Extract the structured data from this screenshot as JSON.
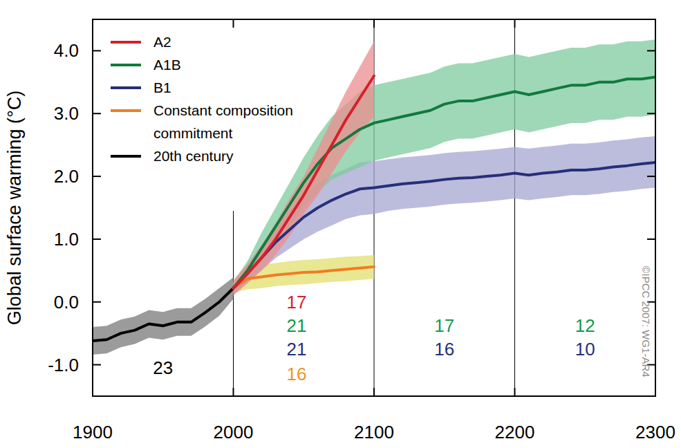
{
  "chart_data": {
    "type": "line",
    "y_label": "Global surface warming (°C)",
    "xlim": [
      1900,
      2300
    ],
    "ylim": [
      -1.5,
      4.5
    ],
    "xticks": [
      1900,
      2000,
      2100,
      2200,
      2300
    ],
    "yticks": [
      {
        "value": -1,
        "label": "-1.0"
      },
      {
        "value": 0,
        "label": "0.0"
      },
      {
        "value": 1,
        "label": "1.0"
      },
      {
        "value": 2,
        "label": "2.0"
      },
      {
        "value": 3,
        "label": "3.0"
      },
      {
        "value": 4,
        "label": "4.0"
      }
    ],
    "grid": false,
    "legend": "top-left",
    "x": [
      1900,
      1910,
      1920,
      1930,
      1940,
      1950,
      1960,
      1970,
      1980,
      1990,
      2000,
      2010,
      2020,
      2030,
      2040,
      2050,
      2060,
      2070,
      2080,
      2090,
      2100,
      2110,
      2120,
      2130,
      2140,
      2150,
      2160,
      2170,
      2180,
      2190,
      2200,
      2210,
      2220,
      2230,
      2240,
      2250,
      2260,
      2270,
      2280,
      2290,
      2300
    ],
    "series": [
      {
        "name": "A2",
        "color": "#d7202a",
        "values": [
          null,
          null,
          null,
          null,
          null,
          null,
          null,
          null,
          null,
          null,
          0.22,
          0.45,
          0.7,
          1.0,
          1.35,
          1.7,
          2.1,
          2.5,
          2.9,
          3.25,
          3.6,
          null,
          null,
          null,
          null,
          null,
          null,
          null,
          null,
          null,
          null,
          null,
          null,
          null,
          null,
          null,
          null,
          null,
          null,
          null,
          null
        ],
        "lower": [
          null,
          null,
          null,
          null,
          null,
          null,
          null,
          null,
          null,
          null,
          0.1,
          0.3,
          0.5,
          0.75,
          1.05,
          1.4,
          1.7,
          2.05,
          2.4,
          2.7,
          2.95,
          null,
          null,
          null,
          null,
          null,
          null,
          null,
          null,
          null,
          null,
          null,
          null,
          null,
          null,
          null,
          null,
          null,
          null,
          null,
          null
        ],
        "upper": [
          null,
          null,
          null,
          null,
          null,
          null,
          null,
          null,
          null,
          null,
          0.35,
          0.6,
          0.9,
          1.25,
          1.65,
          2.0,
          2.45,
          2.9,
          3.35,
          3.75,
          4.15,
          null,
          null,
          null,
          null,
          null,
          null,
          null,
          null,
          null,
          null,
          null,
          null,
          null,
          null,
          null,
          null,
          null,
          null,
          null,
          null
        ]
      },
      {
        "name": "A1B",
        "color": "#117a3e",
        "values": [
          null,
          null,
          null,
          null,
          null,
          null,
          null,
          null,
          null,
          null,
          0.22,
          0.5,
          0.85,
          1.2,
          1.55,
          1.9,
          2.2,
          2.45,
          2.6,
          2.75,
          2.85,
          2.9,
          2.95,
          3.0,
          3.05,
          3.15,
          3.2,
          3.2,
          3.25,
          3.3,
          3.35,
          3.3,
          3.35,
          3.4,
          3.45,
          3.45,
          3.5,
          3.5,
          3.55,
          3.55,
          3.58
        ],
        "lower": [
          null,
          null,
          null,
          null,
          null,
          null,
          null,
          null,
          null,
          null,
          0.12,
          0.35,
          0.6,
          0.9,
          1.2,
          1.5,
          1.75,
          1.95,
          2.05,
          2.15,
          2.25,
          2.3,
          2.35,
          2.4,
          2.45,
          2.55,
          2.6,
          2.6,
          2.65,
          2.7,
          2.75,
          2.7,
          2.75,
          2.8,
          2.85,
          2.85,
          2.9,
          2.9,
          2.95,
          2.95,
          2.98
        ],
        "upper": [
          null,
          null,
          null,
          null,
          null,
          null,
          null,
          null,
          null,
          null,
          0.32,
          0.65,
          1.1,
          1.5,
          1.9,
          2.3,
          2.65,
          2.95,
          3.15,
          3.35,
          3.45,
          3.5,
          3.55,
          3.6,
          3.65,
          3.75,
          3.8,
          3.8,
          3.85,
          3.9,
          3.95,
          3.9,
          3.95,
          4.0,
          4.05,
          4.05,
          4.1,
          4.1,
          4.15,
          4.15,
          4.18
        ]
      },
      {
        "name": "B1",
        "color": "#262f79",
        "values": [
          null,
          null,
          null,
          null,
          null,
          null,
          null,
          null,
          null,
          null,
          0.22,
          0.45,
          0.7,
          0.95,
          1.15,
          1.35,
          1.5,
          1.62,
          1.72,
          1.8,
          1.82,
          1.85,
          1.88,
          1.9,
          1.92,
          1.95,
          1.97,
          1.98,
          2.0,
          2.02,
          2.05,
          2.02,
          2.05,
          2.07,
          2.1,
          2.1,
          2.12,
          2.15,
          2.17,
          2.2,
          2.22
        ],
        "lower": [
          null,
          null,
          null,
          null,
          null,
          null,
          null,
          null,
          null,
          null,
          0.12,
          0.3,
          0.5,
          0.7,
          0.85,
          1.0,
          1.12,
          1.22,
          1.32,
          1.38,
          1.4,
          1.45,
          1.48,
          1.5,
          1.52,
          1.55,
          1.57,
          1.58,
          1.6,
          1.62,
          1.65,
          1.62,
          1.65,
          1.67,
          1.7,
          1.7,
          1.72,
          1.75,
          1.77,
          1.8,
          1.82
        ],
        "upper": [
          null,
          null,
          null,
          null,
          null,
          null,
          null,
          null,
          null,
          null,
          0.32,
          0.6,
          0.9,
          1.2,
          1.45,
          1.7,
          1.88,
          2.02,
          2.12,
          2.22,
          2.24,
          2.27,
          2.3,
          2.32,
          2.34,
          2.37,
          2.39,
          2.4,
          2.42,
          2.44,
          2.47,
          2.44,
          2.47,
          2.49,
          2.52,
          2.52,
          2.54,
          2.57,
          2.59,
          2.62,
          2.64
        ]
      },
      {
        "name": "Constant composition commitment",
        "color": "#f07c22",
        "values": [
          null,
          null,
          null,
          null,
          null,
          null,
          null,
          null,
          null,
          null,
          0.22,
          0.37,
          0.4,
          0.43,
          0.45,
          0.47,
          0.48,
          0.5,
          0.52,
          0.54,
          0.56,
          null,
          null,
          null,
          null,
          null,
          null,
          null,
          null,
          null,
          null,
          null,
          null,
          null,
          null,
          null,
          null,
          null,
          null,
          null,
          null
        ],
        "lower": [
          null,
          null,
          null,
          null,
          null,
          null,
          null,
          null,
          null,
          null,
          0.15,
          0.2,
          0.22,
          0.25,
          0.27,
          0.28,
          0.3,
          0.32,
          0.33,
          0.35,
          0.37,
          null,
          null,
          null,
          null,
          null,
          null,
          null,
          null,
          null,
          null,
          null,
          null,
          null,
          null,
          null,
          null,
          null,
          null,
          null,
          null
        ],
        "upper": [
          null,
          null,
          null,
          null,
          null,
          null,
          null,
          null,
          null,
          null,
          0.3,
          0.55,
          0.6,
          0.62,
          0.65,
          0.67,
          0.68,
          0.7,
          0.72,
          0.73,
          0.75,
          null,
          null,
          null,
          null,
          null,
          null,
          null,
          null,
          null,
          null,
          null,
          null,
          null,
          null,
          null,
          null,
          null,
          null,
          null,
          null
        ]
      },
      {
        "name": "20th century",
        "color": "#000000",
        "values": [
          -0.62,
          -0.6,
          -0.5,
          -0.45,
          -0.35,
          -0.38,
          -0.32,
          -0.32,
          -0.17,
          0.0,
          0.22,
          null,
          null,
          null,
          null,
          null,
          null,
          null,
          null,
          null,
          null,
          null,
          null,
          null,
          null,
          null,
          null,
          null,
          null,
          null,
          null,
          null,
          null,
          null,
          null,
          null,
          null,
          null,
          null,
          null,
          null
        ],
        "lower": [
          -0.84,
          -0.82,
          -0.72,
          -0.67,
          -0.57,
          -0.6,
          -0.54,
          -0.54,
          -0.39,
          -0.22,
          0.05,
          null,
          null,
          null,
          null,
          null,
          null,
          null,
          null,
          null,
          null,
          null,
          null,
          null,
          null,
          null,
          null,
          null,
          null,
          null,
          null,
          null,
          null,
          null,
          null,
          null,
          null,
          null,
          null,
          null,
          null
        ],
        "upper": [
          -0.4,
          -0.38,
          -0.28,
          -0.23,
          -0.13,
          -0.16,
          -0.1,
          -0.1,
          0.05,
          0.22,
          0.39,
          null,
          null,
          null,
          null,
          null,
          null,
          null,
          null,
          null,
          null,
          null,
          null,
          null,
          null,
          null,
          null,
          null,
          null,
          null,
          null,
          null,
          null,
          null,
          null,
          null,
          null,
          null,
          null,
          null,
          null
        ]
      }
    ],
    "vlines": [
      {
        "x": 2000,
        "ymax": 1.45
      },
      {
        "x": 2100,
        "ymax": 4.5
      },
      {
        "x": 2200,
        "ymax": 4.5
      }
    ],
    "annotations": [
      {
        "text": "23",
        "x": 1950,
        "y": -1.05,
        "color": "#000000"
      },
      {
        "text": "17",
        "x": 2045,
        "y": 0.0,
        "color": "#d7202a"
      },
      {
        "text": "21",
        "x": 2045,
        "y": -0.38,
        "color": "#119a48"
      },
      {
        "text": "21",
        "x": 2045,
        "y": -0.75,
        "color": "#262f79"
      },
      {
        "text": "16",
        "x": 2045,
        "y": -1.15,
        "color": "#f0932a"
      },
      {
        "text": "17",
        "x": 2150,
        "y": -0.38,
        "color": "#119a48"
      },
      {
        "text": "16",
        "x": 2150,
        "y": -0.75,
        "color": "#262f79"
      },
      {
        "text": "12",
        "x": 2250,
        "y": -0.38,
        "color": "#119a48"
      },
      {
        "text": "10",
        "x": 2250,
        "y": -0.75,
        "color": "#262f79"
      }
    ],
    "copyright": "©IPCC 2007: WG1-AR4"
  }
}
